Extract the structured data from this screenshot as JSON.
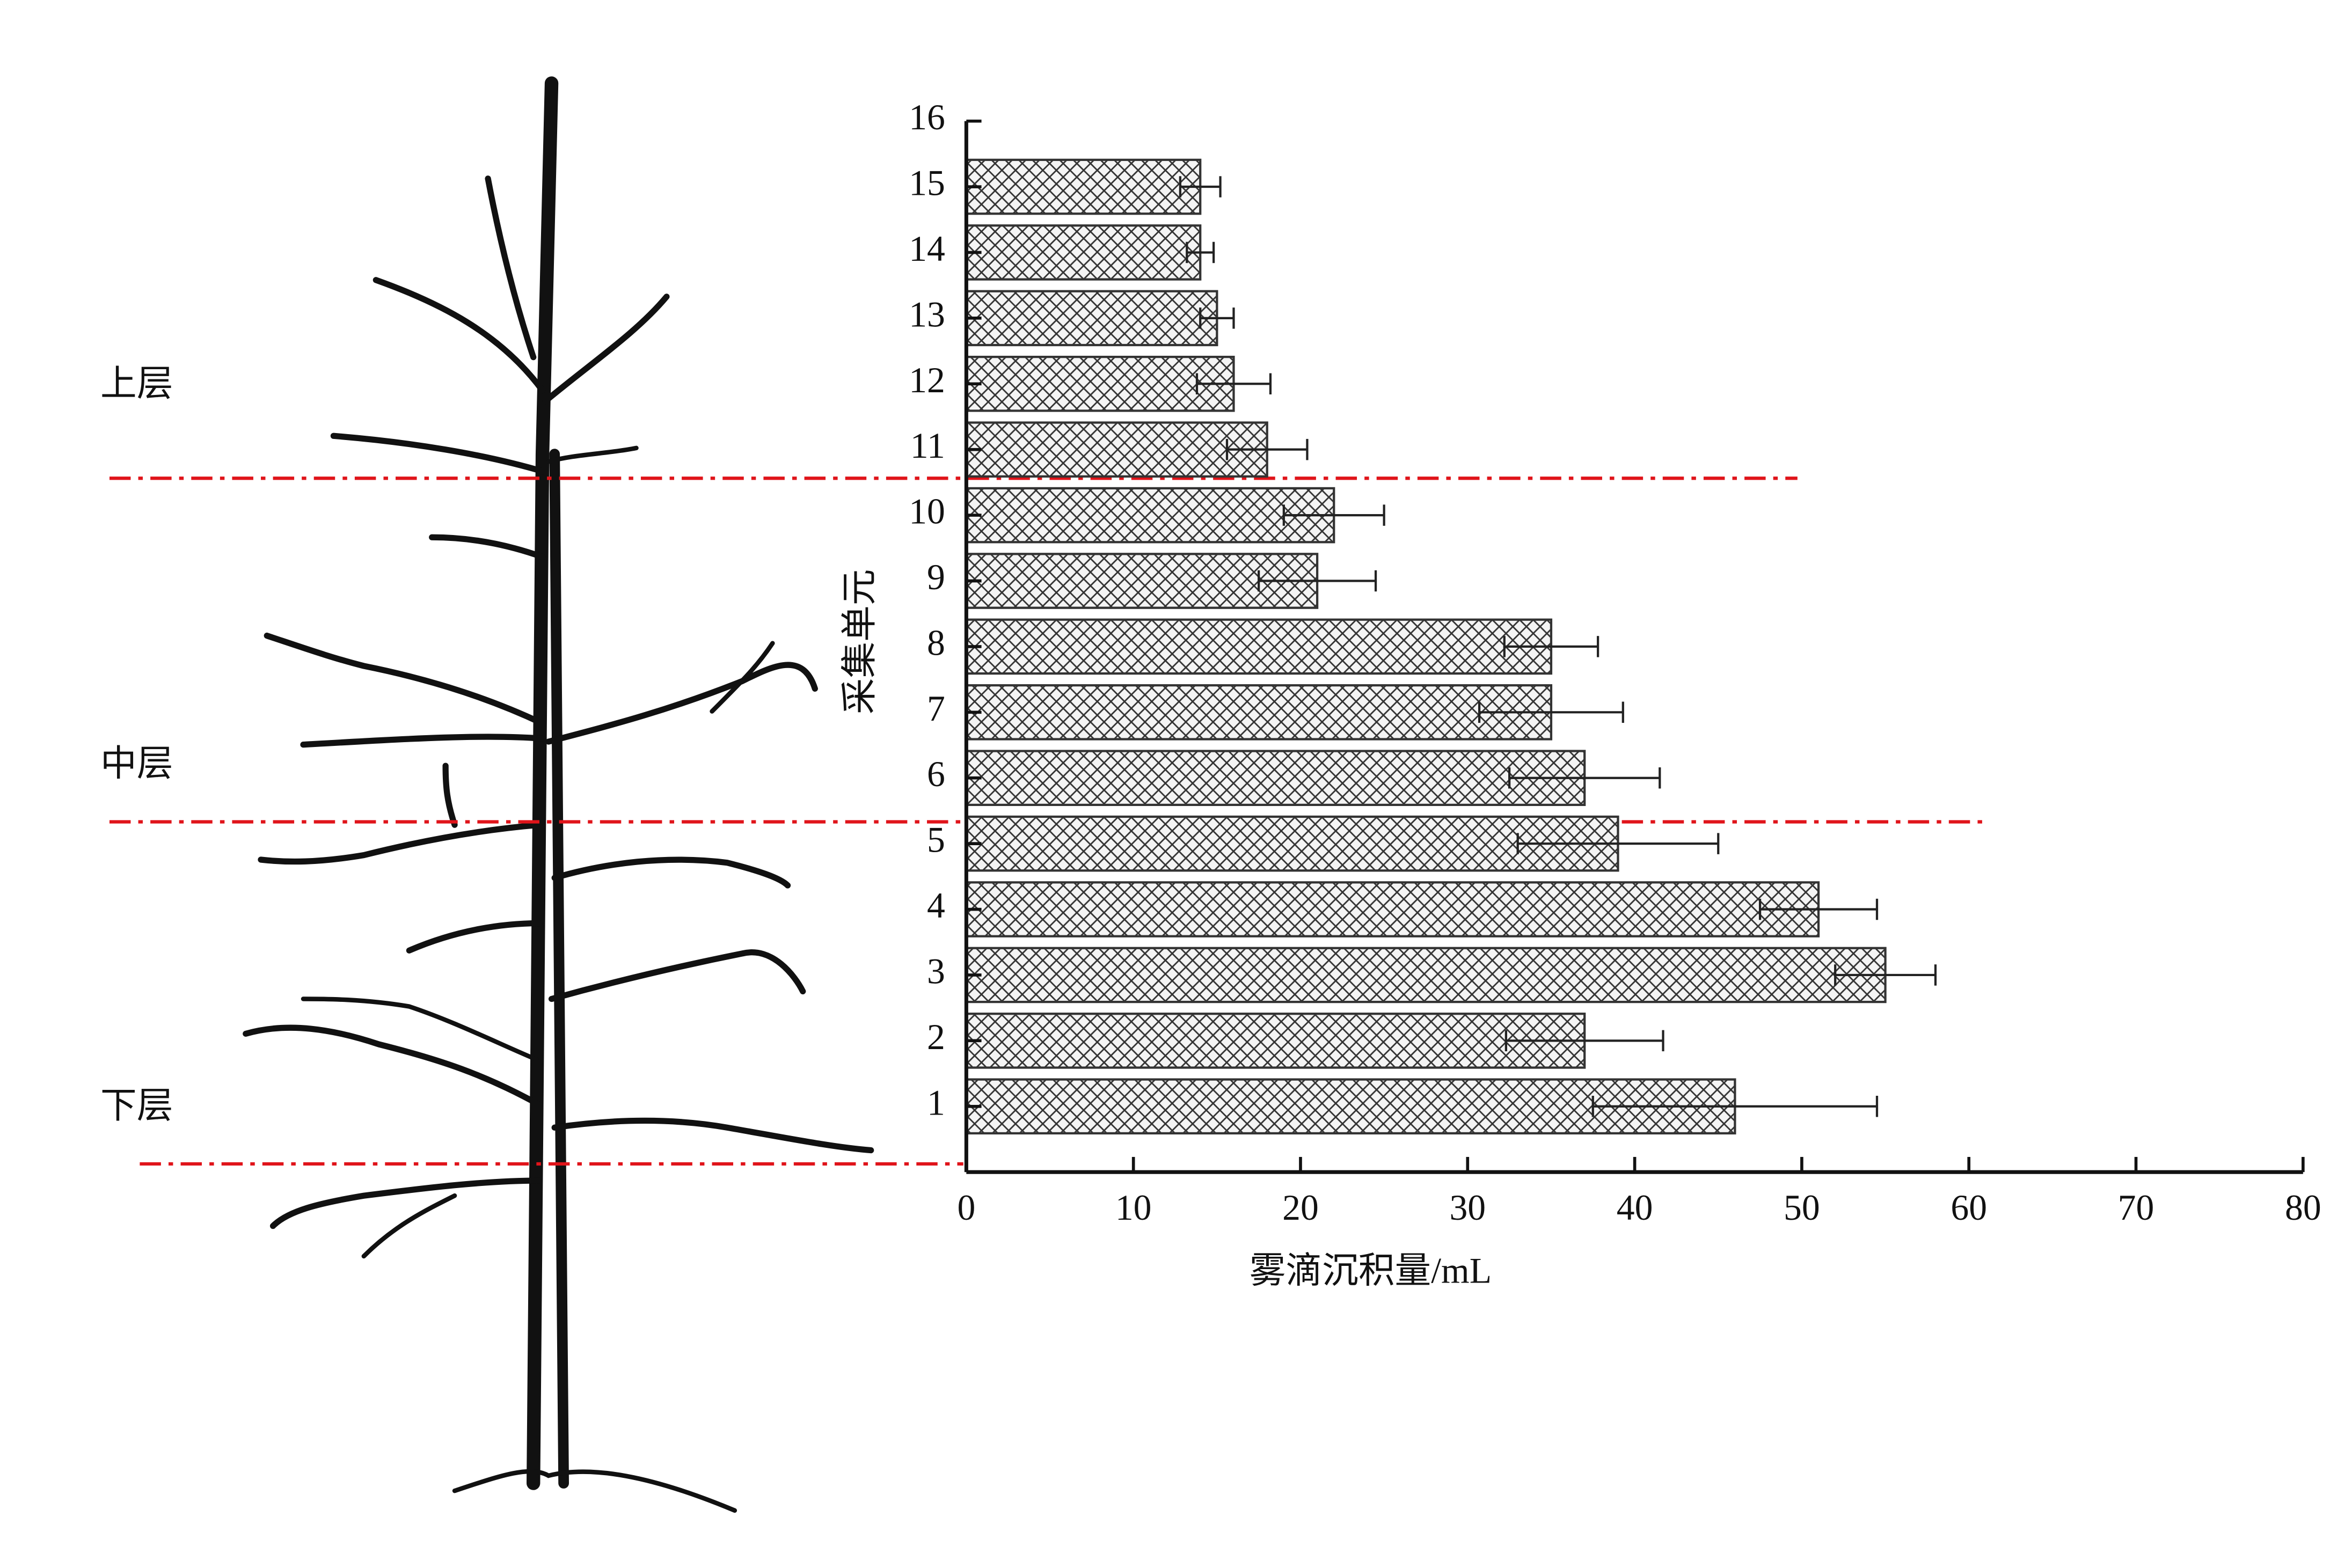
{
  "chart_data": {
    "type": "bar",
    "orientation": "horizontal",
    "xlabel": "雾滴沉积量/mL",
    "ylabel": "采集单元",
    "annotations": [
      "上层",
      "中层",
      "下层"
    ],
    "y": [
      1,
      2,
      3,
      4,
      5,
      6,
      7,
      8,
      9,
      10,
      11,
      12,
      13,
      14,
      15
    ],
    "values": [
      46,
      37,
      55,
      51,
      39,
      37,
      35,
      35,
      21,
      22,
      18,
      16,
      15,
      14,
      14
    ],
    "errors": [
      8.5,
      4.7,
      3,
      3.5,
      6,
      4.5,
      4.3,
      2.8,
      3.5,
      3,
      2.4,
      2.2,
      1,
      0.8,
      1.2
    ],
    "color": "#333333",
    "xlim": [
      0,
      80
    ],
    "xticks": [
      0,
      10,
      20,
      30,
      40,
      50,
      60,
      70,
      80
    ],
    "ylim": [
      0,
      16
    ],
    "yticks": [
      1,
      2,
      3,
      4,
      5,
      6,
      7,
      8,
      9,
      10,
      11,
      12,
      13,
      14,
      15,
      16
    ]
  }
}
